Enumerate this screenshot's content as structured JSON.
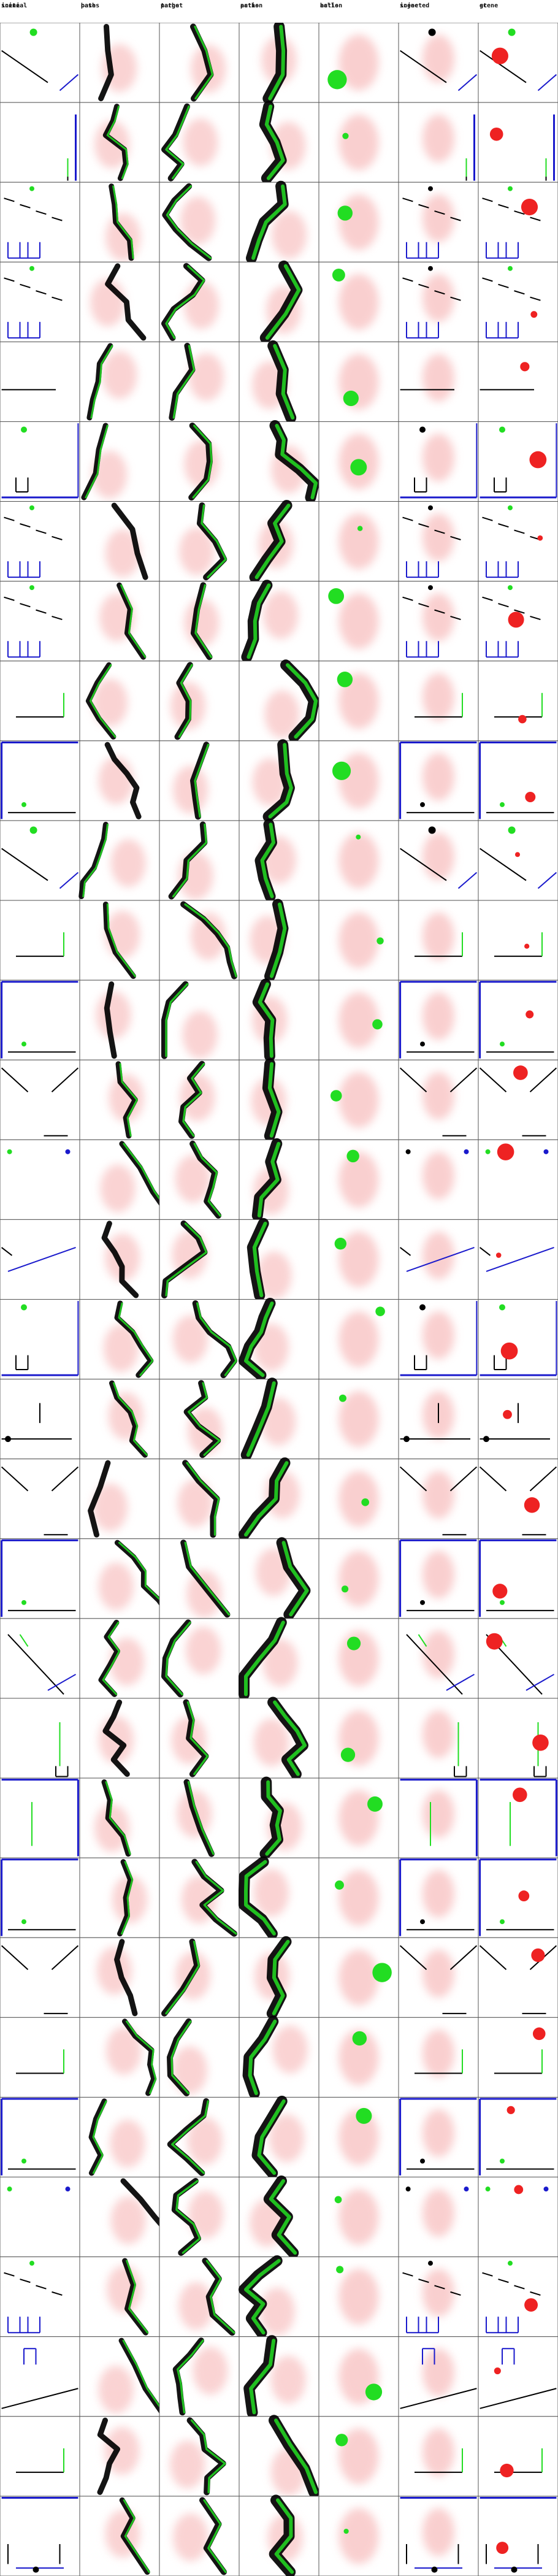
{
  "columns": [
    {
      "line1": "initial",
      "line2": "scene"
    },
    {
      "line1": "base",
      "line2": "paths"
    },
    {
      "line1": "target",
      "line2": "paths"
    },
    {
      "line1": "action",
      "line2": "paths"
    },
    {
      "line1": "action",
      "line2": "balls"
    },
    {
      "line1": "injected",
      "line2": "scene"
    },
    {
      "line1": "gt",
      "line2": "scene"
    }
  ],
  "row_count": 32,
  "colors": {
    "background": "#ffffff",
    "grid_line": "#555555",
    "green": "#22dd22",
    "red": "#ee2222",
    "blue": "#1a1acc",
    "black": "#000000",
    "pink_heat": "#f6b0b0"
  },
  "scene_types": [
    "ramp",
    "floor_line",
    "stairs",
    "stairs_cup",
    "platform",
    "cup",
    "stairs",
    "stairs_cup",
    "ledge",
    "box",
    "ramp",
    "ledge",
    "box",
    "funnel",
    "dots",
    "slope",
    "cup",
    "seesaw",
    "funnel",
    "box",
    "tilt_ramp",
    "cup_right",
    "cup_blue",
    "box",
    "funnel",
    "ledge",
    "box",
    "dots",
    "stairs_cup",
    "hook",
    "ledge",
    "floor"
  ]
}
